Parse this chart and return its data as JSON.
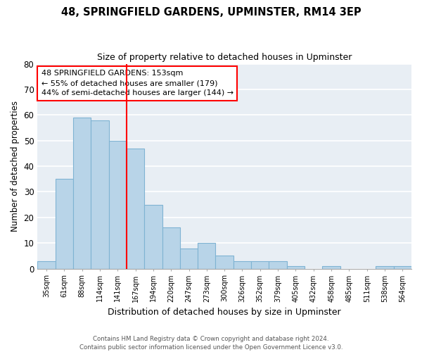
{
  "title": "48, SPRINGFIELD GARDENS, UPMINSTER, RM14 3EP",
  "subtitle": "Size of property relative to detached houses in Upminster",
  "xlabel": "Distribution of detached houses by size in Upminster",
  "ylabel": "Number of detached properties",
  "bar_labels": [
    "35sqm",
    "61sqm",
    "88sqm",
    "114sqm",
    "141sqm",
    "167sqm",
    "194sqm",
    "220sqm",
    "247sqm",
    "273sqm",
    "300sqm",
    "326sqm",
    "352sqm",
    "379sqm",
    "405sqm",
    "432sqm",
    "458sqm",
    "485sqm",
    "511sqm",
    "538sqm",
    "564sqm"
  ],
  "bar_values": [
    3,
    35,
    59,
    58,
    50,
    47,
    25,
    16,
    8,
    10,
    5,
    3,
    3,
    3,
    1,
    0,
    1,
    0,
    0,
    1,
    1
  ],
  "bar_color": "#b8d4e8",
  "bar_edge_color": "#7fb3d3",
  "vline_x": 4.5,
  "vline_color": "red",
  "annotation_line1": "48 SPRINGFIELD GARDENS: 153sqm",
  "annotation_line2": "← 55% of detached houses are smaller (179)",
  "annotation_line3": "44% of semi-detached houses are larger (144) →",
  "annotation_box_color": "white",
  "annotation_box_edge": "red",
  "ylim": [
    0,
    80
  ],
  "yticks": [
    0,
    10,
    20,
    30,
    40,
    50,
    60,
    70,
    80
  ],
  "footer1": "Contains HM Land Registry data © Crown copyright and database right 2024.",
  "footer2": "Contains public sector information licensed under the Open Government Licence v3.0.",
  "bg_color": "#e8eef4"
}
